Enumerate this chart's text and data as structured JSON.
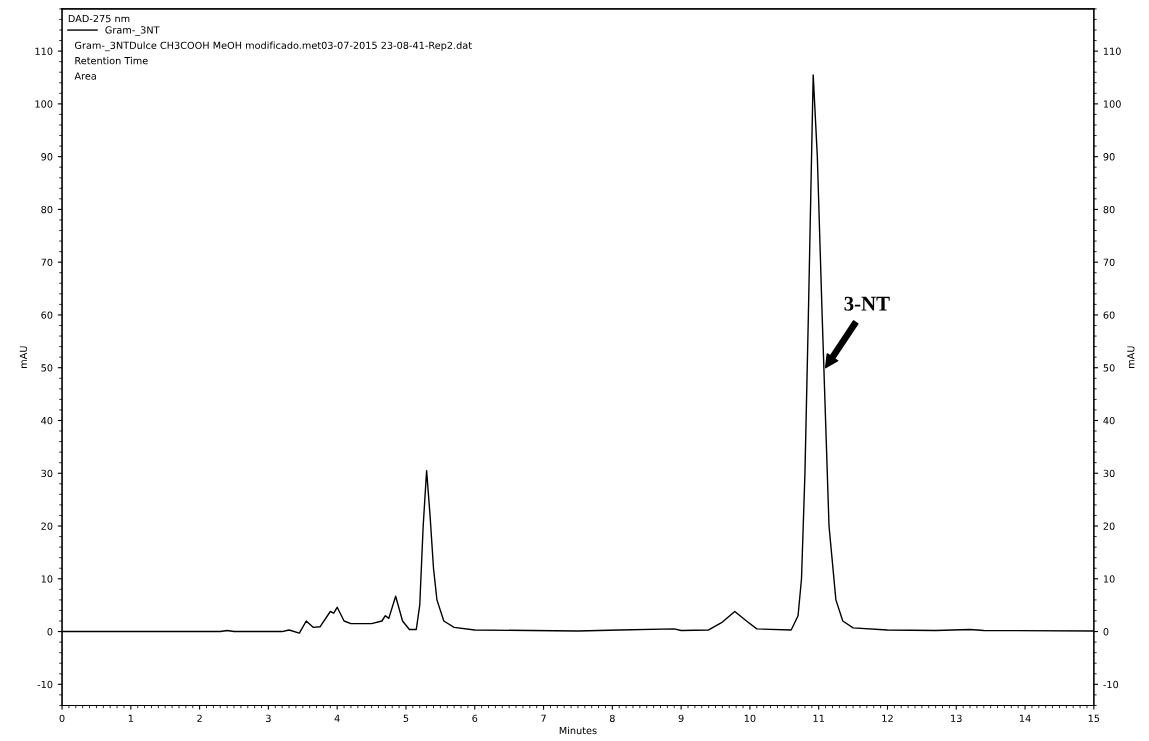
{
  "chart_data": {
    "type": "line",
    "xlabel": "Minutes",
    "ylabel": "mAU",
    "y2label": "mAU",
    "legend_title": "DAD-275 nm",
    "x": [
      0,
      2.3,
      2.4,
      2.5,
      3.2,
      3.3,
      3.45,
      3.55,
      3.65,
      3.75,
      3.9,
      3.95,
      4.0,
      4.1,
      4.2,
      4.5,
      4.65,
      4.7,
      4.75,
      4.85,
      4.95,
      5.05,
      5.15,
      5.2,
      5.25,
      5.3,
      5.35,
      5.4,
      5.45,
      5.55,
      5.7,
      6.0,
      7.5,
      8.1,
      8.9,
      9.0,
      9.4,
      9.6,
      9.78,
      9.95,
      10.1,
      10.6,
      10.7,
      10.75,
      10.8,
      10.85,
      10.92,
      10.98,
      11.05,
      11.1,
      11.15,
      11.25,
      11.35,
      11.5,
      12.0,
      12.7,
      13.2,
      13.4,
      15
    ],
    "series": [
      {
        "name": "Gram-_3NT",
        "color": "#000000",
        "values": [
          0,
          0,
          0.2,
          0,
          0,
          0.3,
          -0.3,
          2,
          0.8,
          0.9,
          3.8,
          3.5,
          4.6,
          2,
          1.5,
          1.5,
          2,
          3,
          2.5,
          6.7,
          2,
          0.4,
          0.4,
          5,
          20,
          30.5,
          22,
          12,
          6,
          2,
          0.8,
          0.3,
          0.1,
          0.3,
          0.5,
          0.2,
          0.3,
          1.8,
          3.8,
          2,
          0.5,
          0.3,
          3,
          10,
          30,
          60,
          105.5,
          90,
          60,
          40,
          20,
          6,
          2,
          0.7,
          0.3,
          0.2,
          0.4,
          0.2,
          0.1
        ]
      }
    ],
    "annotations": [
      "Gram-_3NTDulce CH3COOH MeOH modificado.met03-07-2015 23-08-41-Rep2.dat",
      "Retention Time",
      "Area",
      {
        "text": "3-NT",
        "x": 11.1,
        "y": 50
      }
    ],
    "xlim": [
      0,
      15
    ],
    "xticks": [
      0,
      1,
      2,
      3,
      4,
      5,
      6,
      7,
      8,
      9,
      10,
      11,
      12,
      13,
      14,
      15
    ],
    "ylim": [
      -14,
      118
    ],
    "yticks": [
      -10,
      0,
      10,
      20,
      30,
      40,
      50,
      60,
      70,
      80,
      90,
      100,
      110
    ],
    "y2lim": [
      -14,
      118
    ],
    "y2ticks": [
      -10,
      0,
      10,
      20,
      30,
      40,
      50,
      60,
      70,
      80,
      90,
      100,
      110
    ],
    "legend": "top left",
    "grid": false,
    "marker": "none",
    "line_style": "solid"
  }
}
